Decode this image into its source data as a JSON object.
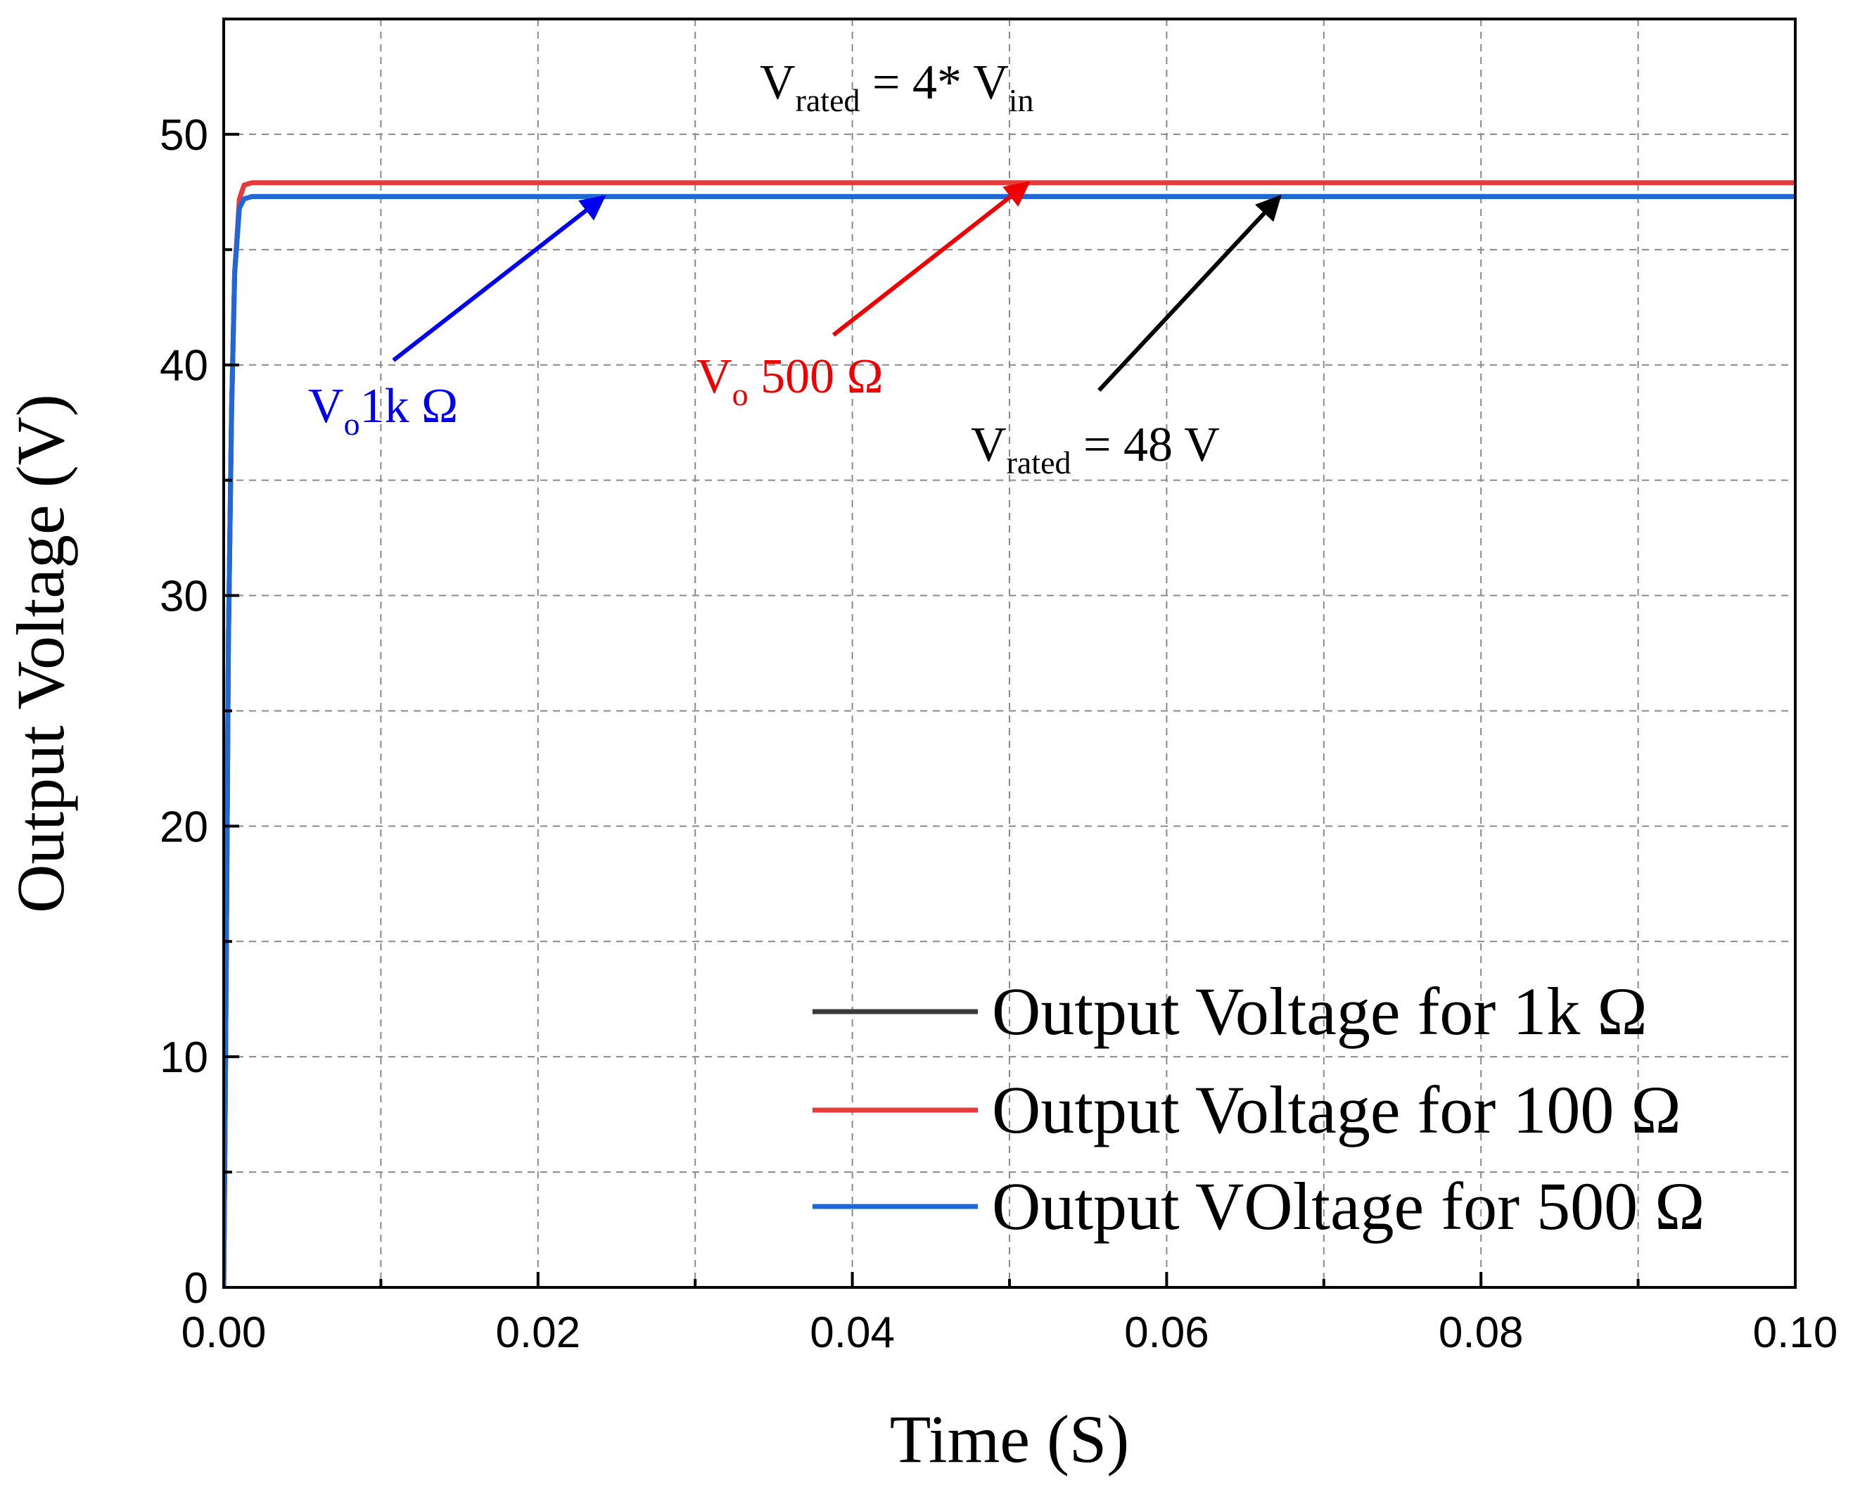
{
  "chart_data": {
    "type": "line",
    "xlabel": "Time (S)",
    "ylabel": "Output Voltage (V)",
    "xlim": [
      0,
      0.1
    ],
    "ylim": [
      0,
      55
    ],
    "x_ticks": [
      "0.00",
      "0.02",
      "0.04",
      "0.06",
      "0.08",
      "0.10"
    ],
    "x_tick_values": [
      0,
      0.02,
      0.04,
      0.06,
      0.08,
      0.1
    ],
    "y_ticks": [
      "0",
      "10",
      "20",
      "30",
      "40",
      "50"
    ],
    "y_tick_values": [
      0,
      10,
      20,
      30,
      40,
      50
    ],
    "grid": true,
    "legend_position": "bottom-right",
    "series": [
      {
        "name": "Output Voltage for 1k Ω",
        "color": "#3a3a3a",
        "x": [
          0,
          0.0001,
          0.0002,
          0.0003,
          0.0005,
          0.0007,
          0.001,
          0.0013,
          0.0018,
          0.003,
          0.1
        ],
        "y": [
          0,
          8,
          18,
          28,
          38,
          44,
          46.8,
          47.2,
          47.3,
          47.3,
          47.3
        ]
      },
      {
        "name": "Output Voltage for 100 Ω",
        "color": "#e8393b",
        "x": [
          0,
          0.0001,
          0.0002,
          0.0003,
          0.0005,
          0.0007,
          0.001,
          0.0013,
          0.0018,
          0.003,
          0.1
        ],
        "y": [
          0,
          8,
          18,
          28,
          38,
          44,
          47.2,
          47.8,
          47.9,
          47.9,
          47.9
        ]
      },
      {
        "name": "Output VOltage for 500 Ω",
        "color": "#1f68d8",
        "x": [
          0,
          0.0001,
          0.0002,
          0.0003,
          0.0005,
          0.0007,
          0.001,
          0.0013,
          0.0018,
          0.003,
          0.1
        ],
        "y": [
          0,
          8,
          18,
          28,
          38,
          44,
          46.8,
          47.2,
          47.3,
          47.3,
          47.3
        ]
      }
    ],
    "annotations": [
      {
        "id": "a-top",
        "main": "V",
        "sub": "rated",
        "suffix": " = 4* V",
        "sub2": "in",
        "color": "#000000"
      },
      {
        "id": "a-1k",
        "main": "V",
        "sub": "o",
        "suffix": "1k Ω",
        "color": "#0000ee",
        "arrow_from": [
          0.0108,
          40.2
        ],
        "arrow_to": [
          0.0242,
          47.3
        ]
      },
      {
        "id": "a-500",
        "main": "V",
        "sub": "o",
        "suffix": " 500 Ω",
        "color": "#ee0000",
        "arrow_from": [
          0.0388,
          41.3
        ],
        "arrow_to": [
          0.0512,
          47.9
        ]
      },
      {
        "id": "a-rated",
        "main": "V",
        "sub": "rated",
        "suffix": " = 48 V",
        "color": "#000000",
        "arrow_from": [
          0.0557,
          38.9
        ],
        "arrow_to": [
          0.0672,
          47.3
        ]
      }
    ]
  }
}
